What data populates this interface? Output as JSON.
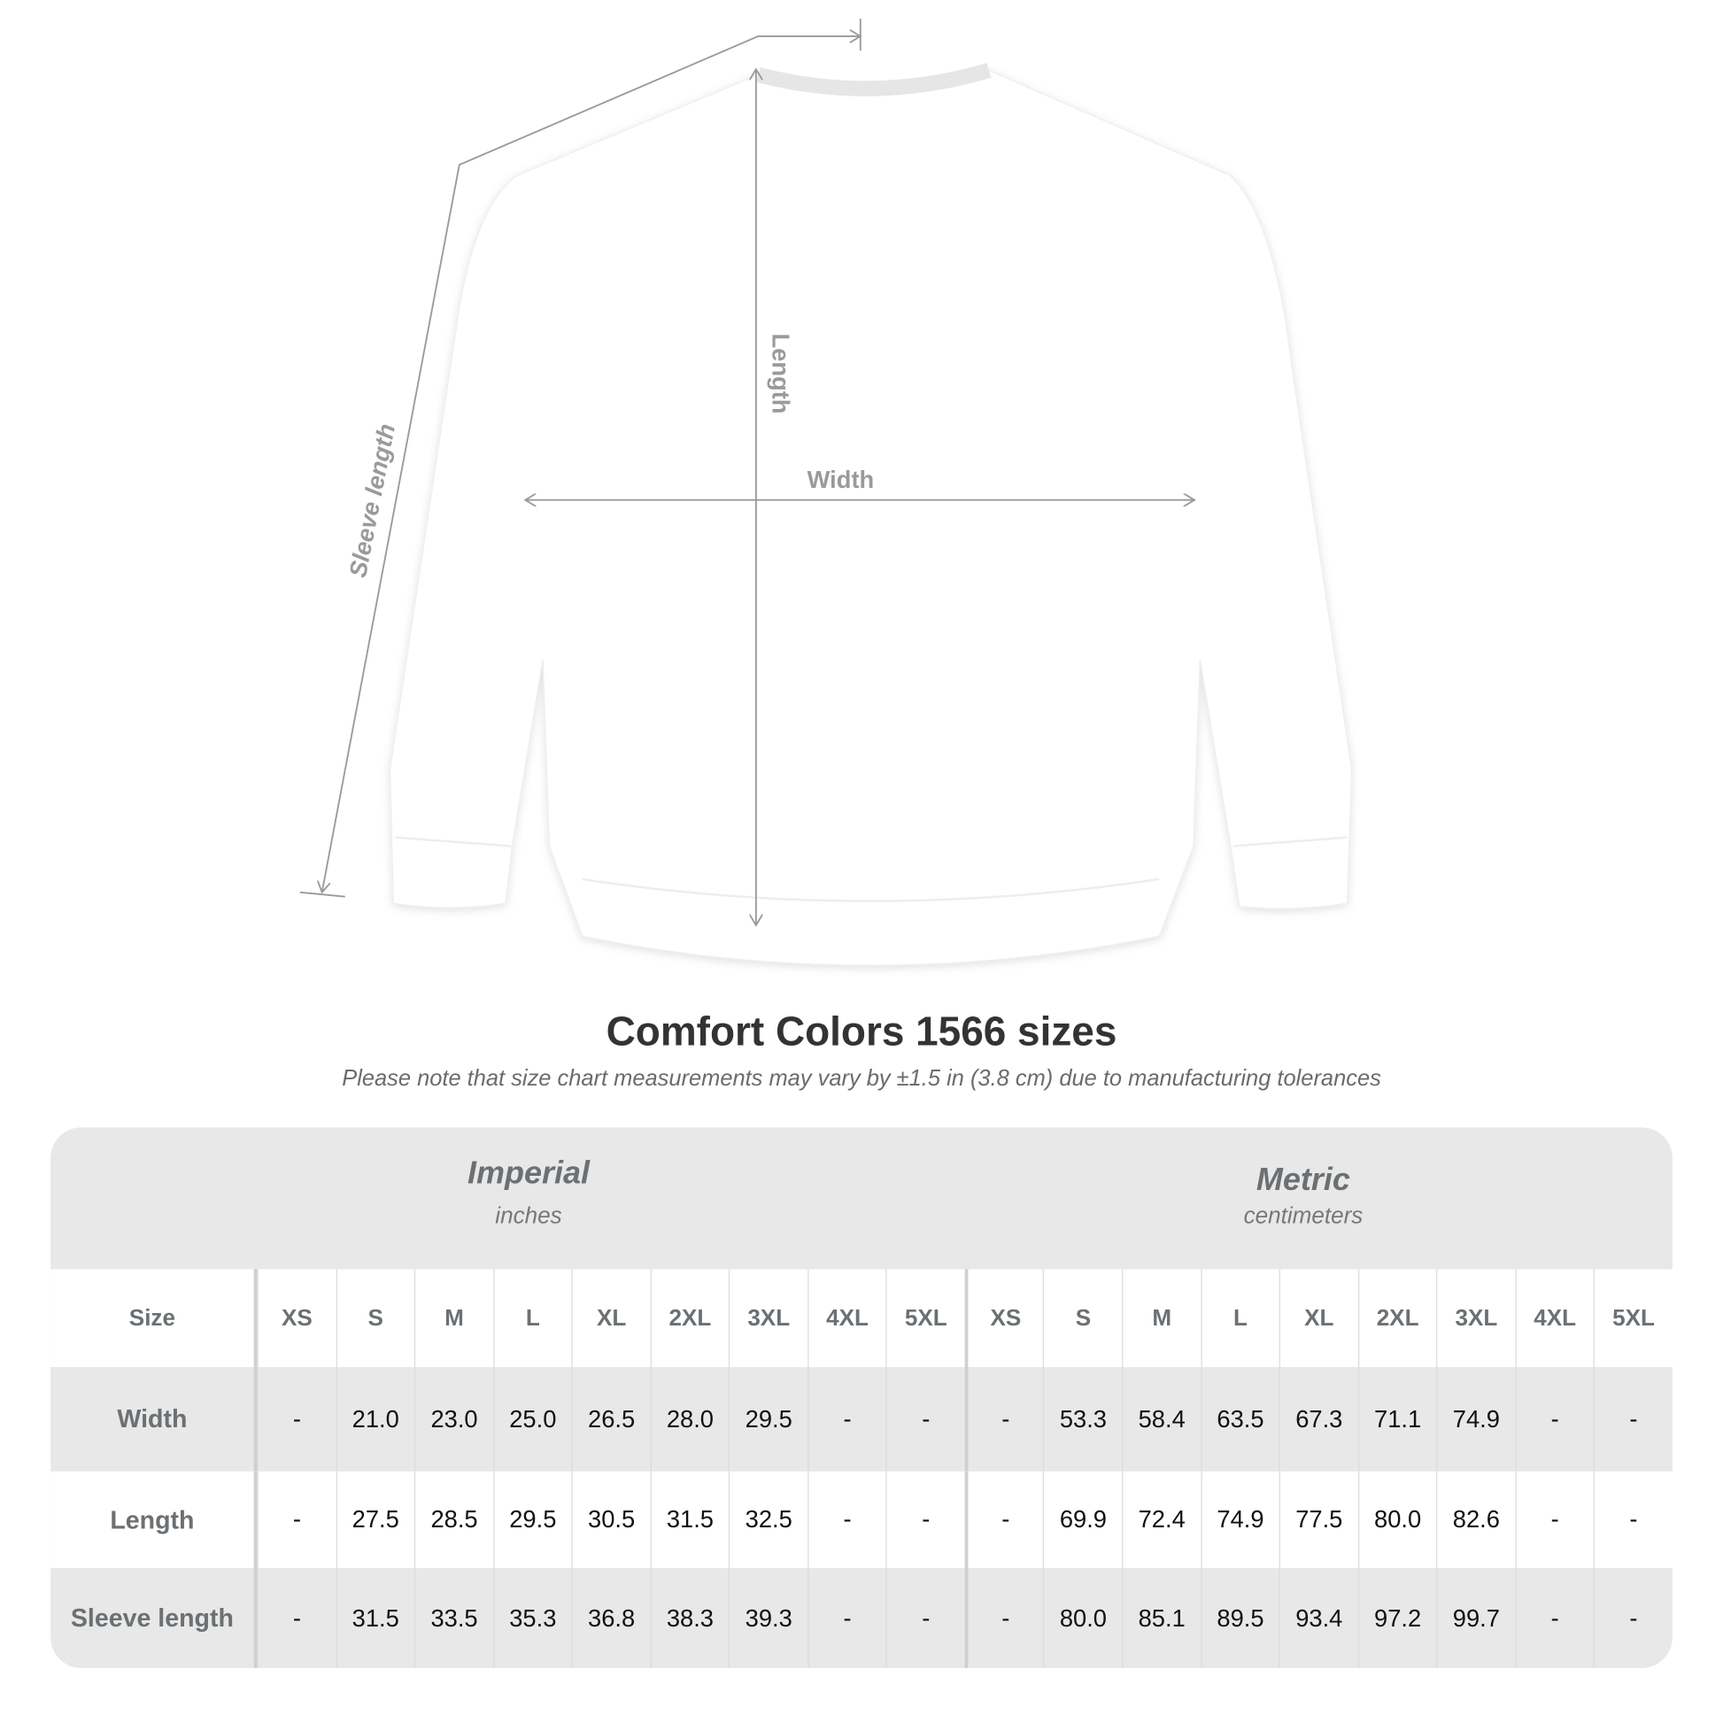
{
  "diagram": {
    "labels": {
      "length": "Length",
      "width": "Width",
      "sleeve": "Sleeve length"
    },
    "colors": {
      "line": "#9a9a9a",
      "shirt": "#ffffff",
      "background": "#ffffff"
    }
  },
  "title": "Comfort Colors 1566 sizes",
  "note": "Please note that size chart measurements may vary by ±1.5 in (3.8 cm) due to manufacturing tolerances",
  "table": {
    "imperial": {
      "title": "Imperial",
      "unit": "inches"
    },
    "metric": {
      "title": "Metric",
      "unit": "centimeters"
    },
    "size_label": "Size",
    "sizes_imperial": [
      "XS",
      "S",
      "M",
      "L",
      "XL",
      "2XL",
      "3XL",
      "4XL",
      "5XL"
    ],
    "sizes_metric": [
      "XS",
      "S",
      "M",
      "L",
      "XL",
      "2XL",
      "3XL",
      "4XL",
      "5XL"
    ],
    "rows": [
      {
        "label": "Width",
        "imperial": [
          "-",
          "21.0",
          "23.0",
          "25.0",
          "26.5",
          "28.0",
          "29.5",
          "-",
          "-"
        ],
        "metric": [
          "-",
          "53.3",
          "58.4",
          "63.5",
          "67.3",
          "71.1",
          "74.9",
          "-",
          "-"
        ]
      },
      {
        "label": "Length",
        "imperial": [
          "-",
          "27.5",
          "28.5",
          "29.5",
          "30.5",
          "31.5",
          "32.5",
          "-",
          "-"
        ],
        "metric": [
          "-",
          "69.9",
          "72.4",
          "74.9",
          "77.5",
          "80.0",
          "82.6",
          "-",
          "-"
        ]
      },
      {
        "label": "Sleeve length",
        "imperial": [
          "-",
          "31.5",
          "33.5",
          "35.3",
          "36.8",
          "38.3",
          "39.3",
          "-",
          "-"
        ],
        "metric": [
          "-",
          "80.0",
          "85.1",
          "89.5",
          "93.4",
          "97.2",
          "99.7",
          "-",
          "-"
        ]
      }
    ]
  }
}
